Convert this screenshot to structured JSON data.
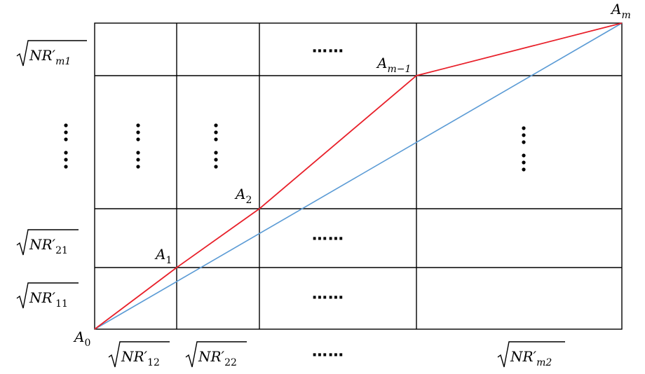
{
  "row_labels": {
    "m1": {
      "text": "NR′",
      "sub": "m1"
    },
    "r21": {
      "text": "NR′",
      "sub": "21"
    },
    "r11": {
      "text": "NR′",
      "sub": "11"
    }
  },
  "col_labels": {
    "c12": {
      "text": "NR′",
      "sub": "12"
    },
    "c22": {
      "text": "NR′",
      "sub": "22"
    },
    "m2": {
      "text": "NR′",
      "sub": "m2"
    }
  },
  "points": {
    "a0": {
      "name": "A",
      "sub": "0"
    },
    "a1": {
      "name": "A",
      "sub": "1"
    },
    "a2": {
      "name": "A",
      "sub": "2"
    },
    "am1": {
      "name": "A",
      "sub": "m−1"
    },
    "am": {
      "name": "A",
      "sub": "m"
    }
  },
  "ellipsis": "⋯⋯",
  "colors": {
    "path": "#e8202a",
    "diagonal": "#5b9bd5",
    "grid": "#000000"
  }
}
